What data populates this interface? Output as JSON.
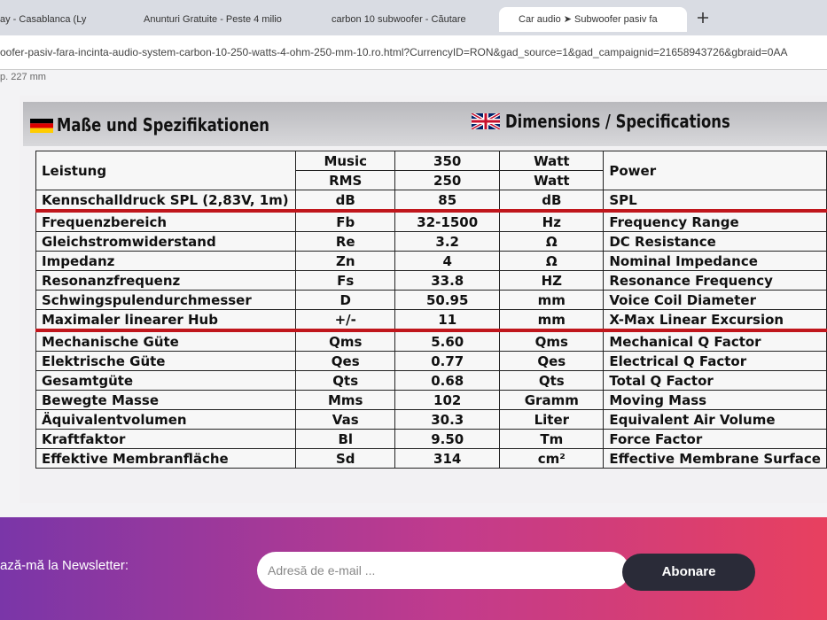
{
  "browser": {
    "tabs": [
      "ay - Casablanca (Ly",
      "Anunturi Gratuite - Peste 4 milio",
      "carbon 10 subwoofer - Căutare",
      "Car audio ➤ Subwoofer pasiv fa"
    ],
    "url": "oofer-pasiv-fara-incinta-audio-system-carbon-10-250-watts-4-ohm-250-mm-10.ro.html?CurrencyID=RON&gad_source=1&gad_campaignid=21658943726&gbraid=0AA"
  },
  "page": {
    "cut_text": "p. 227 mm",
    "spec": {
      "title_de": "Maße und Spezifikationen",
      "title_en": "Dimensions / Specifications",
      "power": {
        "de": "Leistung",
        "en": "Power",
        "sub": [
          [
            "Music",
            "350",
            "Watt"
          ],
          [
            "RMS",
            "250",
            "Watt"
          ]
        ]
      },
      "groups": [
        [
          [
            "Kennschalldruck SPL (2,83V, 1m)",
            "dB",
            "85",
            "dB",
            "SPL"
          ]
        ],
        [
          [
            "Frequenzbereich",
            "Fb",
            "32-1500",
            "Hz",
            "Frequency Range"
          ],
          [
            "Gleichstromwiderstand",
            "Re",
            "3.2",
            "Ω",
            "DC Resistance"
          ],
          [
            "Impedanz",
            "Zn",
            "4",
            "Ω",
            "Nominal Impedance"
          ],
          [
            "Resonanzfrequenz",
            "Fs",
            "33.8",
            "HZ",
            "Resonance Frequency"
          ],
          [
            "Schwingspulendurchmesser",
            "D",
            "50.95",
            "mm",
            "Voice Coil Diameter"
          ],
          [
            "Maximaler linearer Hub",
            "+/-",
            "11",
            "mm",
            "X-Max Linear Excursion"
          ]
        ],
        [
          [
            "Mechanische Güte",
            "Qms",
            "5.60",
            "Qms",
            "Mechanical Q Factor"
          ],
          [
            "Elektrische Güte",
            "Qes",
            "0.77",
            "Qes",
            "Electrical Q Factor"
          ],
          [
            "Gesamtgüte",
            "Qts",
            "0.68",
            "Qts",
            "Total Q Factor"
          ],
          [
            "Bewegte Masse",
            "Mms",
            "102",
            "Gramm",
            "Moving Mass"
          ],
          [
            "Äquivalentvolumen",
            "Vas",
            "30.3",
            "Liter",
            "Equivalent Air Volume"
          ],
          [
            "Kraftfaktor",
            "Bl",
            "9.50",
            "Tm",
            "Force Factor"
          ],
          [
            "Effektive Membranfläche",
            "Sd",
            "314",
            "cm²",
            "Effective Membrane Surface"
          ]
        ]
      ]
    },
    "newsletter": {
      "label": "ază-mă la Newsletter:",
      "placeholder": "Adresă de e-mail ...",
      "button": "Abonare"
    }
  }
}
